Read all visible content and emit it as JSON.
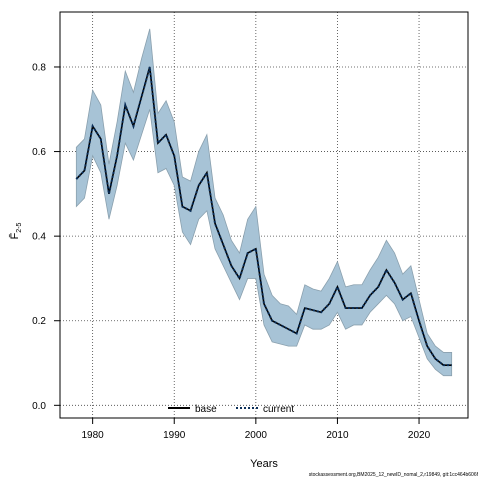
{
  "chart_data": {
    "type": "line",
    "xlabel": "Years",
    "ylabel": "F̄",
    "ylabel_subscript": "2-5",
    "xlim": [
      1976,
      2026
    ],
    "ylim": [
      -0.03,
      0.93
    ],
    "x_ticks": [
      1980,
      1990,
      2000,
      2010,
      2020
    ],
    "y_ticks": [
      0.0,
      0.2,
      0.4,
      0.6,
      0.8
    ],
    "x_tick_labels": [
      "1980",
      "1990",
      "2000",
      "2010",
      "2020"
    ],
    "y_tick_labels": [
      "0.0",
      "0.2",
      "0.4",
      "0.6",
      "0.8"
    ],
    "grid": true,
    "legend_position": "bottom-center",
    "years": [
      1978,
      1979,
      1980,
      1981,
      1982,
      1983,
      1984,
      1985,
      1986,
      1987,
      1988,
      1989,
      1990,
      1991,
      1992,
      1993,
      1994,
      1995,
      1996,
      1997,
      1998,
      1999,
      2000,
      2001,
      2002,
      2003,
      2004,
      2005,
      2006,
      2007,
      2008,
      2009,
      2010,
      2011,
      2012,
      2013,
      2014,
      2015,
      2016,
      2017,
      2018,
      2019,
      2020,
      2021,
      2022,
      2023,
      2024
    ],
    "series": [
      {
        "name": "base",
        "color": "#000000",
        "style": "solid",
        "values": [
          0.535,
          0.555,
          0.66,
          0.63,
          0.5,
          0.59,
          0.71,
          0.66,
          0.73,
          0.8,
          0.62,
          0.64,
          0.59,
          0.47,
          0.46,
          0.52,
          0.55,
          0.43,
          0.38,
          0.33,
          0.3,
          0.36,
          0.37,
          0.24,
          0.2,
          0.19,
          0.18,
          0.17,
          0.23,
          0.225,
          0.22,
          0.24,
          0.28,
          0.23,
          0.23,
          0.23,
          0.26,
          0.28,
          0.32,
          0.29,
          0.25,
          0.265,
          0.2,
          0.14,
          0.11,
          0.095,
          0.095
        ]
      },
      {
        "name": "current",
        "color": "#0b2f5a",
        "style": "dotted",
        "values": [
          0.535,
          0.555,
          0.66,
          0.63,
          0.5,
          0.59,
          0.71,
          0.66,
          0.73,
          0.8,
          0.62,
          0.64,
          0.59,
          0.47,
          0.46,
          0.52,
          0.55,
          0.43,
          0.38,
          0.33,
          0.3,
          0.36,
          0.37,
          0.24,
          0.2,
          0.19,
          0.18,
          0.17,
          0.23,
          0.225,
          0.22,
          0.24,
          0.28,
          0.23,
          0.23,
          0.23,
          0.26,
          0.28,
          0.32,
          0.29,
          0.25,
          0.265,
          0.2,
          0.14,
          0.11,
          0.095,
          0.095
        ]
      }
    ],
    "confidence_band": {
      "color": "#a7c3d6",
      "edge_color": "#8aa0ae",
      "lower": [
        0.47,
        0.49,
        0.59,
        0.55,
        0.44,
        0.52,
        0.62,
        0.58,
        0.64,
        0.7,
        0.55,
        0.56,
        0.52,
        0.41,
        0.38,
        0.44,
        0.46,
        0.37,
        0.33,
        0.29,
        0.25,
        0.3,
        0.3,
        0.19,
        0.15,
        0.145,
        0.14,
        0.14,
        0.19,
        0.18,
        0.18,
        0.19,
        0.22,
        0.18,
        0.19,
        0.19,
        0.22,
        0.24,
        0.26,
        0.24,
        0.2,
        0.21,
        0.16,
        0.11,
        0.085,
        0.07,
        0.07
      ],
      "upper": [
        0.61,
        0.63,
        0.745,
        0.71,
        0.57,
        0.67,
        0.79,
        0.74,
        0.82,
        0.89,
        0.69,
        0.72,
        0.67,
        0.54,
        0.53,
        0.6,
        0.64,
        0.49,
        0.45,
        0.39,
        0.36,
        0.44,
        0.47,
        0.31,
        0.26,
        0.24,
        0.235,
        0.215,
        0.285,
        0.275,
        0.27,
        0.3,
        0.34,
        0.28,
        0.285,
        0.285,
        0.32,
        0.35,
        0.39,
        0.36,
        0.31,
        0.33,
        0.25,
        0.17,
        0.14,
        0.125,
        0.125
      ]
    }
  },
  "footer": "stockassessment.org,BM2025_12_newID_nomal_2,r19849, git:1cc464b606f"
}
